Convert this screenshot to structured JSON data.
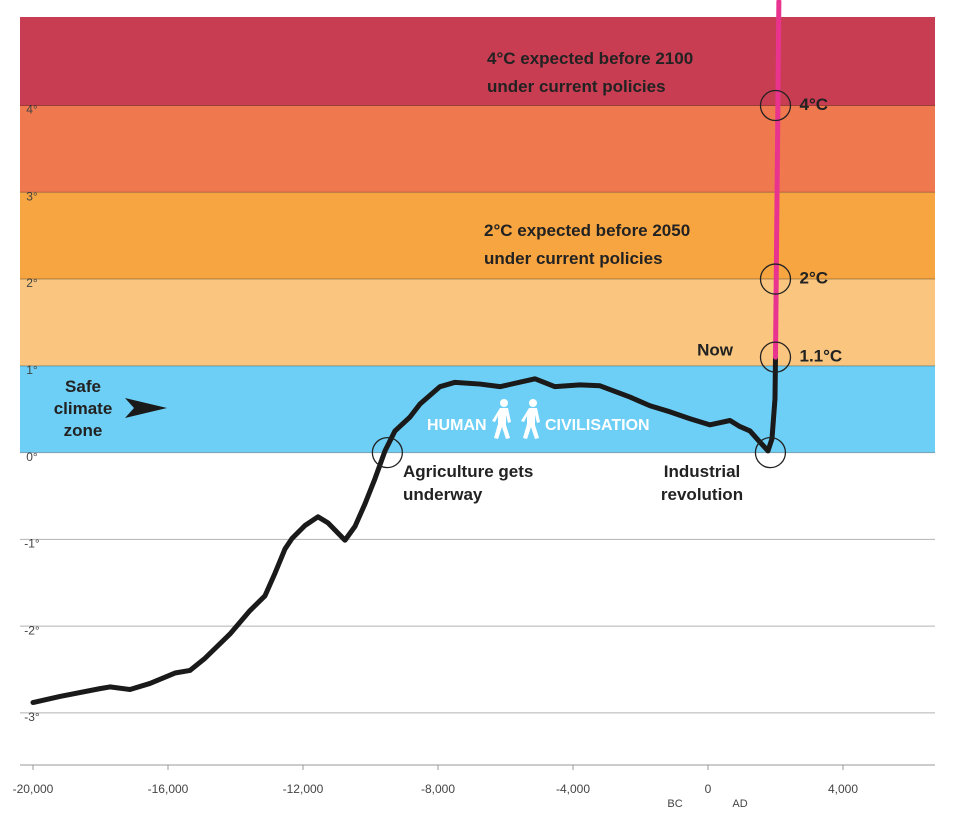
{
  "chart_data": {
    "type": "line",
    "xlim": [
      -20385,
      6726
    ],
    "ylim": [
      -3.6,
      5.02
    ],
    "xticks": [
      {
        "value": -20000,
        "label": "-20,000"
      },
      {
        "value": -16000,
        "label": "-16,000"
      },
      {
        "value": -12000,
        "label": "-12,000"
      },
      {
        "value": -8000,
        "label": "-8,000"
      },
      {
        "value": -4000,
        "label": "-4,000"
      },
      0,
      {
        "value": 4000,
        "label": "4,000"
      }
    ],
    "yticks": [
      {
        "value": -3,
        "label": "-3°"
      },
      {
        "value": -2,
        "label": "-2°"
      },
      {
        "value": -1,
        "label": "-1°"
      },
      {
        "value": 0,
        "label": "0°"
      },
      {
        "value": 1,
        "label": "1°"
      },
      {
        "value": 2,
        "label": "2°"
      },
      {
        "value": 3,
        "label": "3°"
      },
      {
        "value": 4,
        "label": "4°"
      }
    ],
    "grid": true,
    "bands": [
      {
        "from": 0,
        "to": 1,
        "color": "#6dcff6"
      },
      {
        "from": 1,
        "to": 2,
        "color": "#f9c57f"
      },
      {
        "from": 2,
        "to": 3,
        "color": "#f7a541"
      },
      {
        "from": 3,
        "to": 4,
        "color": "#f0784f"
      },
      {
        "from": 4,
        "to": 5.02,
        "color": "#c83d52"
      }
    ],
    "series": [
      {
        "color": "#1a1a1a",
        "x": [
          -20000,
          -19200,
          -18015,
          -17720,
          -17126,
          -16533,
          -15793,
          -15348,
          -14904,
          -14163,
          -13570,
          -13126,
          -12830,
          -12533,
          -12326,
          -11941,
          -11556,
          -11259,
          -10756,
          -10459,
          -10163,
          -9867,
          -9570,
          -9274,
          -8830,
          -8533,
          -7941,
          -7496,
          -6756,
          -6163,
          -5126,
          -4533,
          -3793,
          -3200,
          -2311,
          -1719,
          -1126,
          -533,
          59,
          652,
          948,
          1244,
          1541,
          1778,
          1896,
          1985,
          2000
        ],
        "values": [
          -2.88,
          -2.81,
          -2.72,
          -2.7,
          -2.73,
          -2.66,
          -2.54,
          -2.51,
          -2.37,
          -2.09,
          -1.82,
          -1.65,
          -1.39,
          -1.11,
          -0.99,
          -0.84,
          -0.74,
          -0.81,
          -1.01,
          -0.85,
          -0.59,
          -0.3,
          0.02,
          0.25,
          0.41,
          0.56,
          0.76,
          0.81,
          0.79,
          0.76,
          0.85,
          0.76,
          0.78,
          0.77,
          0.64,
          0.54,
          0.47,
          0.39,
          0.32,
          0.37,
          0.3,
          0.25,
          0.12,
          0.02,
          0.16,
          0.62,
          1.1
        ]
      },
      {
        "color": "#e8348f",
        "x": [
          2000,
          2100
        ],
        "values": [
          1.1,
          5.2
        ]
      }
    ],
    "markers": [
      {
        "x": -9500,
        "y": 0
      },
      {
        "x": 1850,
        "y": 0
      },
      {
        "x": 2000,
        "y": 1.1,
        "label": "1.1°C"
      },
      {
        "x": 2000,
        "y": 2,
        "label": "2°C"
      },
      {
        "x": 2000,
        "y": 4,
        "label": "4°C"
      }
    ],
    "annotations": [
      {
        "lines": [
          "4°C expected before 2100",
          "under current policies"
        ]
      },
      {
        "lines": [
          "2°C expected before 2050",
          "under current policies"
        ]
      },
      {
        "lines": [
          "Safe",
          "climate",
          "zone"
        ]
      },
      {
        "lines": [
          "HUMAN"
        ]
      },
      {
        "lines": [
          "CIVILISATION"
        ]
      },
      {
        "lines": [
          "Agriculture gets",
          "underway"
        ]
      },
      {
        "lines": [
          "Industrial",
          "revolution"
        ]
      },
      {
        "lines": [
          "Now"
        ]
      },
      {
        "lines": [
          "BC"
        ]
      },
      {
        "lines": [
          "AD"
        ]
      }
    ]
  }
}
